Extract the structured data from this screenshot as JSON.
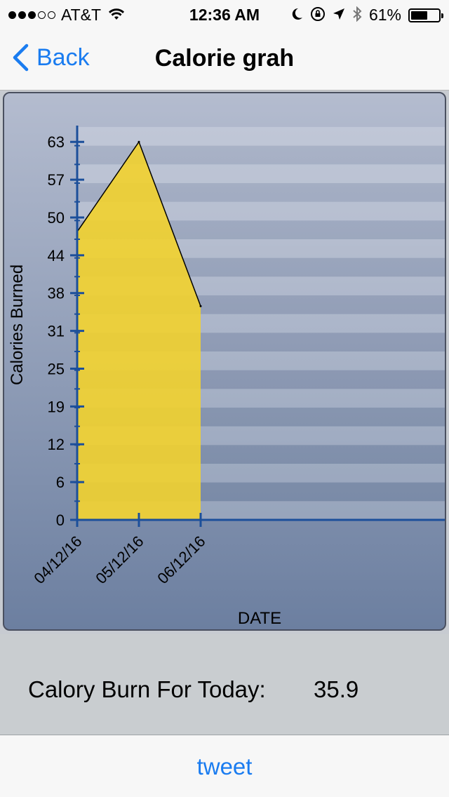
{
  "status_bar": {
    "signal_bars_full": 3,
    "signal_bars_total": 5,
    "carrier": "AT&T",
    "time": "12:36 AM",
    "battery": "61%",
    "battery_level": 0.61,
    "icons": [
      "wifi-icon",
      "moon-icon",
      "orientation-lock-icon",
      "location-icon",
      "bluetooth-icon"
    ]
  },
  "nav": {
    "back_label": "Back",
    "title": "Calorie grah"
  },
  "chart_data": {
    "type": "area",
    "x": [
      "04/12/16",
      "05/12/16",
      "06/12/16"
    ],
    "values": [
      48.4,
      63.5,
      35.9
    ],
    "xlabel": "DATE",
    "ylabel": "Calories Burned",
    "yticks": [
      "0",
      "6",
      "12",
      "19",
      "25",
      "31",
      "38",
      "44",
      "50",
      "57",
      "63"
    ],
    "ylim": [
      0,
      66
    ],
    "grid": "alternating horizontal bands",
    "fill_color": "#f2d22e",
    "axis_color": "#1c4f9a"
  },
  "summary": {
    "label": "Calory Burn For Today:",
    "value": "35.9"
  },
  "footer": {
    "tweet_label": "tweet"
  },
  "colors": {
    "accent": "#1a7cf0"
  }
}
